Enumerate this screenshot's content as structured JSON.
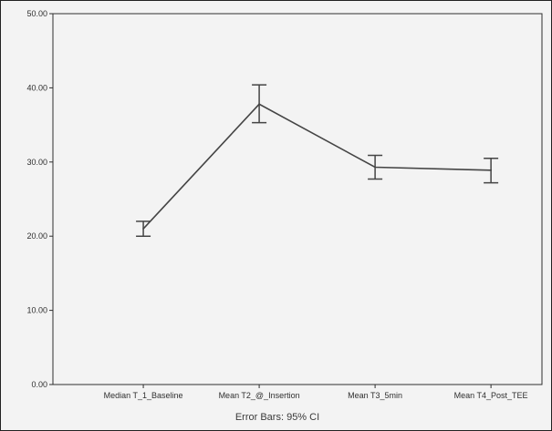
{
  "chart_data": {
    "type": "line",
    "categories": [
      "Median T_1_Baseline",
      "Mean T2_@_Insertion",
      "Mean T3_5min",
      "Mean T4_Post_TEE"
    ],
    "series": [
      {
        "values": [
          21.0,
          37.8,
          29.3,
          28.9
        ],
        "ci_lower": [
          20.0,
          35.3,
          27.7,
          27.2
        ],
        "ci_upper": [
          22.0,
          40.4,
          30.9,
          30.5
        ]
      }
    ],
    "ylim": [
      0,
      50
    ],
    "yticks": [
      0,
      10,
      20,
      30,
      40,
      50
    ],
    "ytick_labels": [
      "0.00",
      "10.00",
      "20.00",
      "30.00",
      "40.00",
      "50.00"
    ],
    "error_bar_note": "Error Bars: 95% CI",
    "grid": false,
    "colors": {
      "frame": "#2f2f2f",
      "line": "#444444",
      "plot_background": "#f3f3f3",
      "page_background": "#ffffff"
    }
  }
}
